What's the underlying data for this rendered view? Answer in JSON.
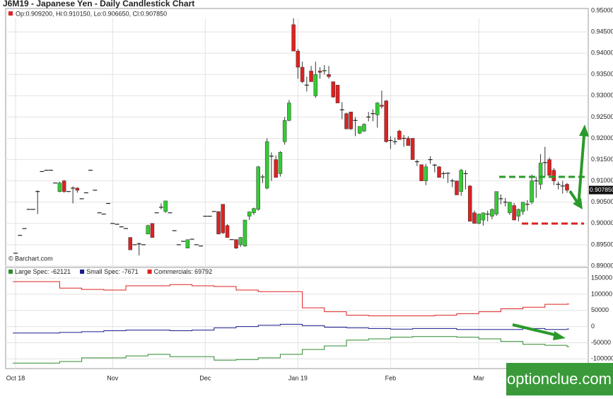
{
  "chart_data": [
    {
      "type": "candlestick",
      "title": "J6M19 - Japanese Yen - Daily Candlestick Chart",
      "ohlc_legend": "Op:0.909200, Hi:0.910150, Lo:0.906650, Cl:0.907850",
      "source": "© Barchart.com",
      "watermark": "optionclue.com",
      "up_color": "#33cc33",
      "down_color": "#dd2222",
      "flat_color": "#222222",
      "grid": true,
      "last_price": {
        "value": 0.90785,
        "label": "0.907850"
      },
      "ylim": [
        0.89,
        0.9505
      ],
      "yticks": [
        {
          "value": 0.95,
          "label": "0.950000"
        },
        {
          "value": 0.945,
          "label": "0.945000"
        },
        {
          "value": 0.94,
          "label": "0.940000"
        },
        {
          "value": 0.935,
          "label": "0.935000"
        },
        {
          "value": 0.93,
          "label": "0.930000"
        },
        {
          "value": 0.925,
          "label": "0.925000"
        },
        {
          "value": 0.92,
          "label": "0.920000"
        },
        {
          "value": 0.915,
          "label": "0.915000"
        },
        {
          "value": 0.91,
          "label": "0.910000"
        },
        {
          "value": 0.905,
          "label": "0.905000"
        },
        {
          "value": 0.9,
          "label": "0.900000"
        },
        {
          "value": 0.895,
          "label": "0.895000"
        },
        {
          "value": 0.89,
          "label": "0.890000"
        }
      ],
      "categories": [
        "Oct 18",
        null,
        null,
        null,
        null,
        null,
        null,
        null,
        null,
        null,
        null,
        null,
        null,
        null,
        null,
        null,
        null,
        null,
        null,
        null,
        null,
        null,
        "Nov",
        null,
        null,
        null,
        null,
        null,
        null,
        null,
        null,
        null,
        null,
        null,
        null,
        null,
        null,
        null,
        null,
        null,
        null,
        null,
        null,
        "Dec",
        null,
        null,
        null,
        null,
        null,
        null,
        null,
        null,
        null,
        null,
        null,
        null,
        null,
        null,
        null,
        null,
        null,
        null,
        null,
        null,
        "Jan 19",
        null,
        null,
        null,
        null,
        null,
        null,
        null,
        null,
        null,
        null,
        null,
        null,
        null,
        null,
        null,
        null,
        null,
        null,
        null,
        null,
        "Feb",
        null,
        null,
        null,
        null,
        null,
        null,
        null,
        null,
        null,
        null,
        null,
        null,
        null,
        null,
        null,
        null,
        null,
        null,
        null,
        "Mar",
        null,
        null,
        null,
        null,
        null,
        null,
        null,
        null,
        null,
        null,
        null,
        null,
        null,
        null,
        null,
        null,
        null,
        null,
        null,
        null
      ],
      "candles": [
        [
          0.893,
          0.893,
          0.893,
          0.893
        ],
        [
          0.8972,
          0.8972,
          0.8972,
          0.8972
        ],
        [
          0.8988,
          0.8988,
          0.8988,
          0.8988
        ],
        [
          0.9033,
          0.9033,
          0.9033,
          0.9033
        ],
        [
          0.9033,
          0.9033,
          0.9033,
          0.9033
        ],
        [
          0.9075,
          0.9078,
          0.9022,
          0.9075
        ],
        [
          0.9122,
          0.9122,
          0.9122,
          0.9122
        ],
        [
          0.9125,
          0.9125,
          0.9125,
          0.9125
        ],
        [
          0.9125,
          0.9125,
          0.9125,
          0.9125
        ],
        [
          0.9095,
          0.9095,
          0.9095,
          0.9095
        ],
        [
          0.9075,
          0.9098,
          0.9073,
          0.9095
        ],
        [
          0.91,
          0.9102,
          0.9072,
          0.9075
        ],
        [
          0.9075,
          0.9075,
          0.9075,
          0.9075
        ],
        [
          0.9083,
          0.9087,
          0.9047,
          0.9083
        ],
        [
          0.9083,
          0.9085,
          0.9072,
          0.9078
        ],
        [
          0.9058,
          0.9058,
          0.9058,
          0.9058
        ],
        [
          0.9072,
          0.9072,
          0.9072,
          0.9072
        ],
        [
          0.9125,
          0.9125,
          0.9125,
          0.9125
        ],
        [
          0.9078,
          0.9078,
          0.9078,
          0.9078
        ],
        [
          0.9025,
          0.9025,
          0.9025,
          0.9025
        ],
        [
          0.9022,
          0.9022,
          0.9022,
          0.9022
        ],
        [
          0.9047,
          0.9047,
          0.9047,
          0.9047
        ],
        [
          0.9,
          0.9,
          0.9,
          0.9
        ],
        [
          0.8998,
          0.8998,
          0.8998,
          0.8998
        ],
        [
          0.8992,
          0.8992,
          0.8992,
          0.8992
        ],
        [
          0.8988,
          0.8988,
          0.8988,
          0.8988
        ],
        [
          0.8967,
          0.8968,
          0.8938,
          0.8938
        ],
        [
          0.895,
          0.895,
          0.895,
          0.895
        ],
        [
          0.8952,
          0.8955,
          0.8925,
          0.8952
        ],
        [
          0.895,
          0.895,
          0.895,
          0.895
        ],
        [
          0.8975,
          0.8997,
          0.8975,
          0.8995
        ],
        [
          0.9,
          0.9,
          0.8967,
          0.8967
        ],
        [
          0.9025,
          0.9025,
          0.9025,
          0.9025
        ],
        [
          0.9038,
          0.9047,
          0.9033,
          0.9038
        ],
        [
          0.9028,
          0.9053,
          0.9025,
          0.9053
        ],
        [
          0.9025,
          0.9025,
          0.9025,
          0.9025
        ],
        [
          0.8983,
          0.8983,
          0.8983,
          0.8983
        ],
        [
          0.895,
          0.895,
          0.895,
          0.895
        ],
        [
          0.8958,
          0.8958,
          0.8958,
          0.8958
        ],
        [
          0.8942,
          0.8962,
          0.8942,
          0.8962
        ],
        [
          0.8963,
          0.8963,
          0.8963,
          0.8963
        ],
        [
          0.895,
          0.895,
          0.895,
          0.895
        ],
        [
          0.8947,
          0.8947,
          0.8947,
          0.8947
        ],
        [
          0.9017,
          0.9017,
          0.9017,
          0.9017
        ],
        [
          0.9017,
          0.9017,
          0.9017,
          0.9017
        ],
        [
          0.9028,
          0.9028,
          0.9028,
          0.9028
        ],
        [
          0.9028,
          0.9028,
          0.8975,
          0.8975
        ],
        [
          0.9045,
          0.9045,
          0.8975,
          0.8978
        ],
        [
          0.8995,
          0.8998,
          0.8967,
          0.8967
        ],
        [
          0.8962,
          0.8962,
          0.8962,
          0.8962
        ],
        [
          0.8962,
          0.8963,
          0.894,
          0.8942
        ],
        [
          0.895,
          0.8968,
          0.8945,
          0.8967
        ],
        [
          0.8947,
          0.9008,
          0.8945,
          0.9008
        ],
        [
          0.9017,
          0.9028,
          0.9008,
          0.9027
        ],
        [
          0.9025,
          0.9037,
          0.902,
          0.9035
        ],
        [
          0.9033,
          0.9135,
          0.903,
          0.9133
        ],
        [
          0.9108,
          0.9115,
          0.9095,
          0.911
        ],
        [
          0.9083,
          0.92,
          0.908,
          0.9192
        ],
        [
          0.9158,
          0.9167,
          0.91,
          0.9158
        ],
        [
          0.915,
          0.916,
          0.911,
          0.9108
        ],
        [
          0.9117,
          0.917,
          0.911,
          0.9167
        ],
        [
          0.9192,
          0.925,
          0.9185,
          0.9242
        ],
        [
          0.9242,
          0.929,
          0.924,
          0.9283
        ],
        [
          0.9467,
          0.95,
          0.9405,
          0.9405
        ],
        [
          0.9405,
          0.941,
          0.934,
          0.9367
        ],
        [
          0.9367,
          0.938,
          0.933,
          0.9333
        ],
        [
          0.9325,
          0.9345,
          0.931,
          0.9325
        ],
        [
          0.9358,
          0.937,
          0.9333,
          0.9333
        ],
        [
          0.93,
          0.938,
          0.9295,
          0.935
        ],
        [
          0.9358,
          0.9367,
          0.934,
          0.9355
        ],
        [
          0.9358,
          0.9372,
          0.935,
          0.936
        ],
        [
          0.935,
          0.937,
          0.934,
          0.9345
        ],
        [
          0.9333,
          0.9333,
          0.9295,
          0.9297
        ],
        [
          0.9325,
          0.9325,
          0.9283,
          0.9283
        ],
        [
          0.9267,
          0.9285,
          0.9245,
          0.9267
        ],
        [
          0.9258,
          0.926,
          0.9222,
          0.9222
        ],
        [
          0.9262,
          0.9262,
          0.922,
          0.9222
        ],
        [
          0.9242,
          0.925,
          0.9205,
          0.9242
        ],
        [
          0.9212,
          0.9225,
          0.921,
          0.9228
        ],
        [
          0.9217,
          0.9235,
          0.9215,
          0.9233
        ],
        [
          0.925,
          0.9262,
          0.924,
          0.925
        ],
        [
          0.9258,
          0.9268,
          0.924,
          0.9258
        ],
        [
          0.9255,
          0.9285,
          0.9225,
          0.9283
        ],
        [
          0.9278,
          0.9312,
          0.927,
          0.9275
        ],
        [
          0.9288,
          0.929,
          0.919,
          0.9192
        ],
        [
          0.9195,
          0.9205,
          0.9175,
          0.9195
        ],
        [
          0.9192,
          0.9202,
          0.9185,
          0.9192
        ],
        [
          0.9217,
          0.922,
          0.9197,
          0.9197
        ],
        [
          0.92,
          0.9208,
          0.918,
          0.92
        ],
        [
          0.92,
          0.9205,
          0.9183,
          0.9183
        ],
        [
          0.92,
          0.92,
          0.915,
          0.915
        ],
        [
          0.9145,
          0.915,
          0.9135,
          0.9145
        ],
        [
          0.9138,
          0.9138,
          0.91,
          0.91
        ],
        [
          0.91,
          0.914,
          0.909,
          0.9133
        ],
        [
          0.915,
          0.9158,
          0.914,
          0.915
        ],
        [
          0.9137,
          0.914,
          0.912,
          0.9137
        ],
        [
          0.9133,
          0.9135,
          0.9108,
          0.9108
        ],
        [
          0.9117,
          0.9122,
          0.9105,
          0.9117
        ],
        [
          0.9118,
          0.912,
          0.9095,
          0.9118
        ],
        [
          0.91,
          0.9105,
          0.9085,
          0.91
        ],
        [
          0.91,
          0.91,
          0.9067,
          0.9067
        ],
        [
          0.9075,
          0.9128,
          0.9065,
          0.9125
        ],
        [
          0.9117,
          0.9125,
          0.908,
          0.9117
        ],
        [
          0.9088,
          0.909,
          0.9005,
          0.9005
        ],
        [
          0.9025,
          0.903,
          0.9,
          0.9
        ],
        [
          0.9,
          0.9023,
          0.8998,
          0.9022
        ],
        [
          0.9008,
          0.9025,
          0.8995,
          0.9025
        ],
        [
          0.9022,
          0.903,
          0.9005,
          0.9022
        ],
        [
          0.9017,
          0.9035,
          0.901,
          0.9033
        ],
        [
          0.9022,
          0.9075,
          0.9018,
          0.9075
        ],
        [
          0.9058,
          0.9068,
          0.9045,
          0.9058
        ],
        [
          0.905,
          0.906,
          0.904,
          0.905
        ],
        [
          0.9025,
          0.905,
          0.902,
          0.905
        ],
        [
          0.9042,
          0.9048,
          0.9008,
          0.9008
        ],
        [
          0.9017,
          0.9035,
          0.9005,
          0.9033
        ],
        [
          0.9028,
          0.905,
          0.902,
          0.905
        ],
        [
          0.9045,
          0.9055,
          0.903,
          0.9045
        ],
        [
          0.905,
          0.9115,
          0.9045,
          0.91
        ],
        [
          0.91,
          0.911,
          0.906,
          0.91
        ],
        [
          0.9092,
          0.9163,
          0.908,
          0.9142
        ],
        [
          0.9143,
          0.918,
          0.911,
          0.9143
        ],
        [
          0.915,
          0.9155,
          0.9113,
          0.9113
        ],
        [
          0.9125,
          0.913,
          0.909,
          0.91
        ],
        [
          0.9092,
          0.9098,
          0.908,
          0.9092
        ],
        [
          0.9088,
          0.91,
          0.907,
          0.9088
        ],
        [
          0.9092,
          0.9095,
          0.9072,
          0.9078
        ]
      ]
    },
    {
      "type": "step",
      "x": [
        0,
        5,
        10,
        15,
        20,
        25,
        30,
        35,
        40,
        45,
        50,
        55,
        60,
        65,
        70,
        75,
        80,
        85,
        90,
        95,
        100,
        105,
        110,
        115,
        120,
        125
      ],
      "ylim": [
        -130000,
        183000
      ],
      "yticks": [
        150000,
        100000,
        50000,
        0,
        -50000,
        -100000
      ],
      "grid": true,
      "series": [
        {
          "name": "Large Spec: -62121",
          "color": "#2e8b2e",
          "values": [
            -113000,
            -113000,
            -108000,
            -97000,
            -97000,
            -91000,
            -86000,
            -93000,
            -93000,
            -104000,
            -102000,
            -97000,
            -86000,
            -71000,
            -60000,
            -42000,
            -38000,
            -33000,
            -31000,
            -31000,
            -33000,
            -38000,
            -46000,
            -55000,
            -58000,
            -62121
          ]
        },
        {
          "name": "Small Spec: -7671",
          "color": "#1a1a8c",
          "values": [
            -20000,
            -20000,
            -18000,
            -16000,
            -13000,
            -11000,
            -11000,
            -13000,
            -11000,
            -4000,
            0,
            4000,
            7000,
            3000,
            -2000,
            -4000,
            -6000,
            -8000,
            -6000,
            -6000,
            -9000,
            -9000,
            -9000,
            -6000,
            -9000,
            -7671
          ]
        },
        {
          "name": "Commercials: 69792",
          "color": "#dd2222",
          "values": [
            139000,
            139000,
            119000,
            115000,
            113000,
            126000,
            126000,
            130000,
            126000,
            124000,
            113000,
            108000,
            108000,
            58000,
            46000,
            35000,
            33000,
            33000,
            33000,
            35000,
            40000,
            46000,
            55000,
            60000,
            69000,
            69792
          ]
        }
      ]
    }
  ]
}
